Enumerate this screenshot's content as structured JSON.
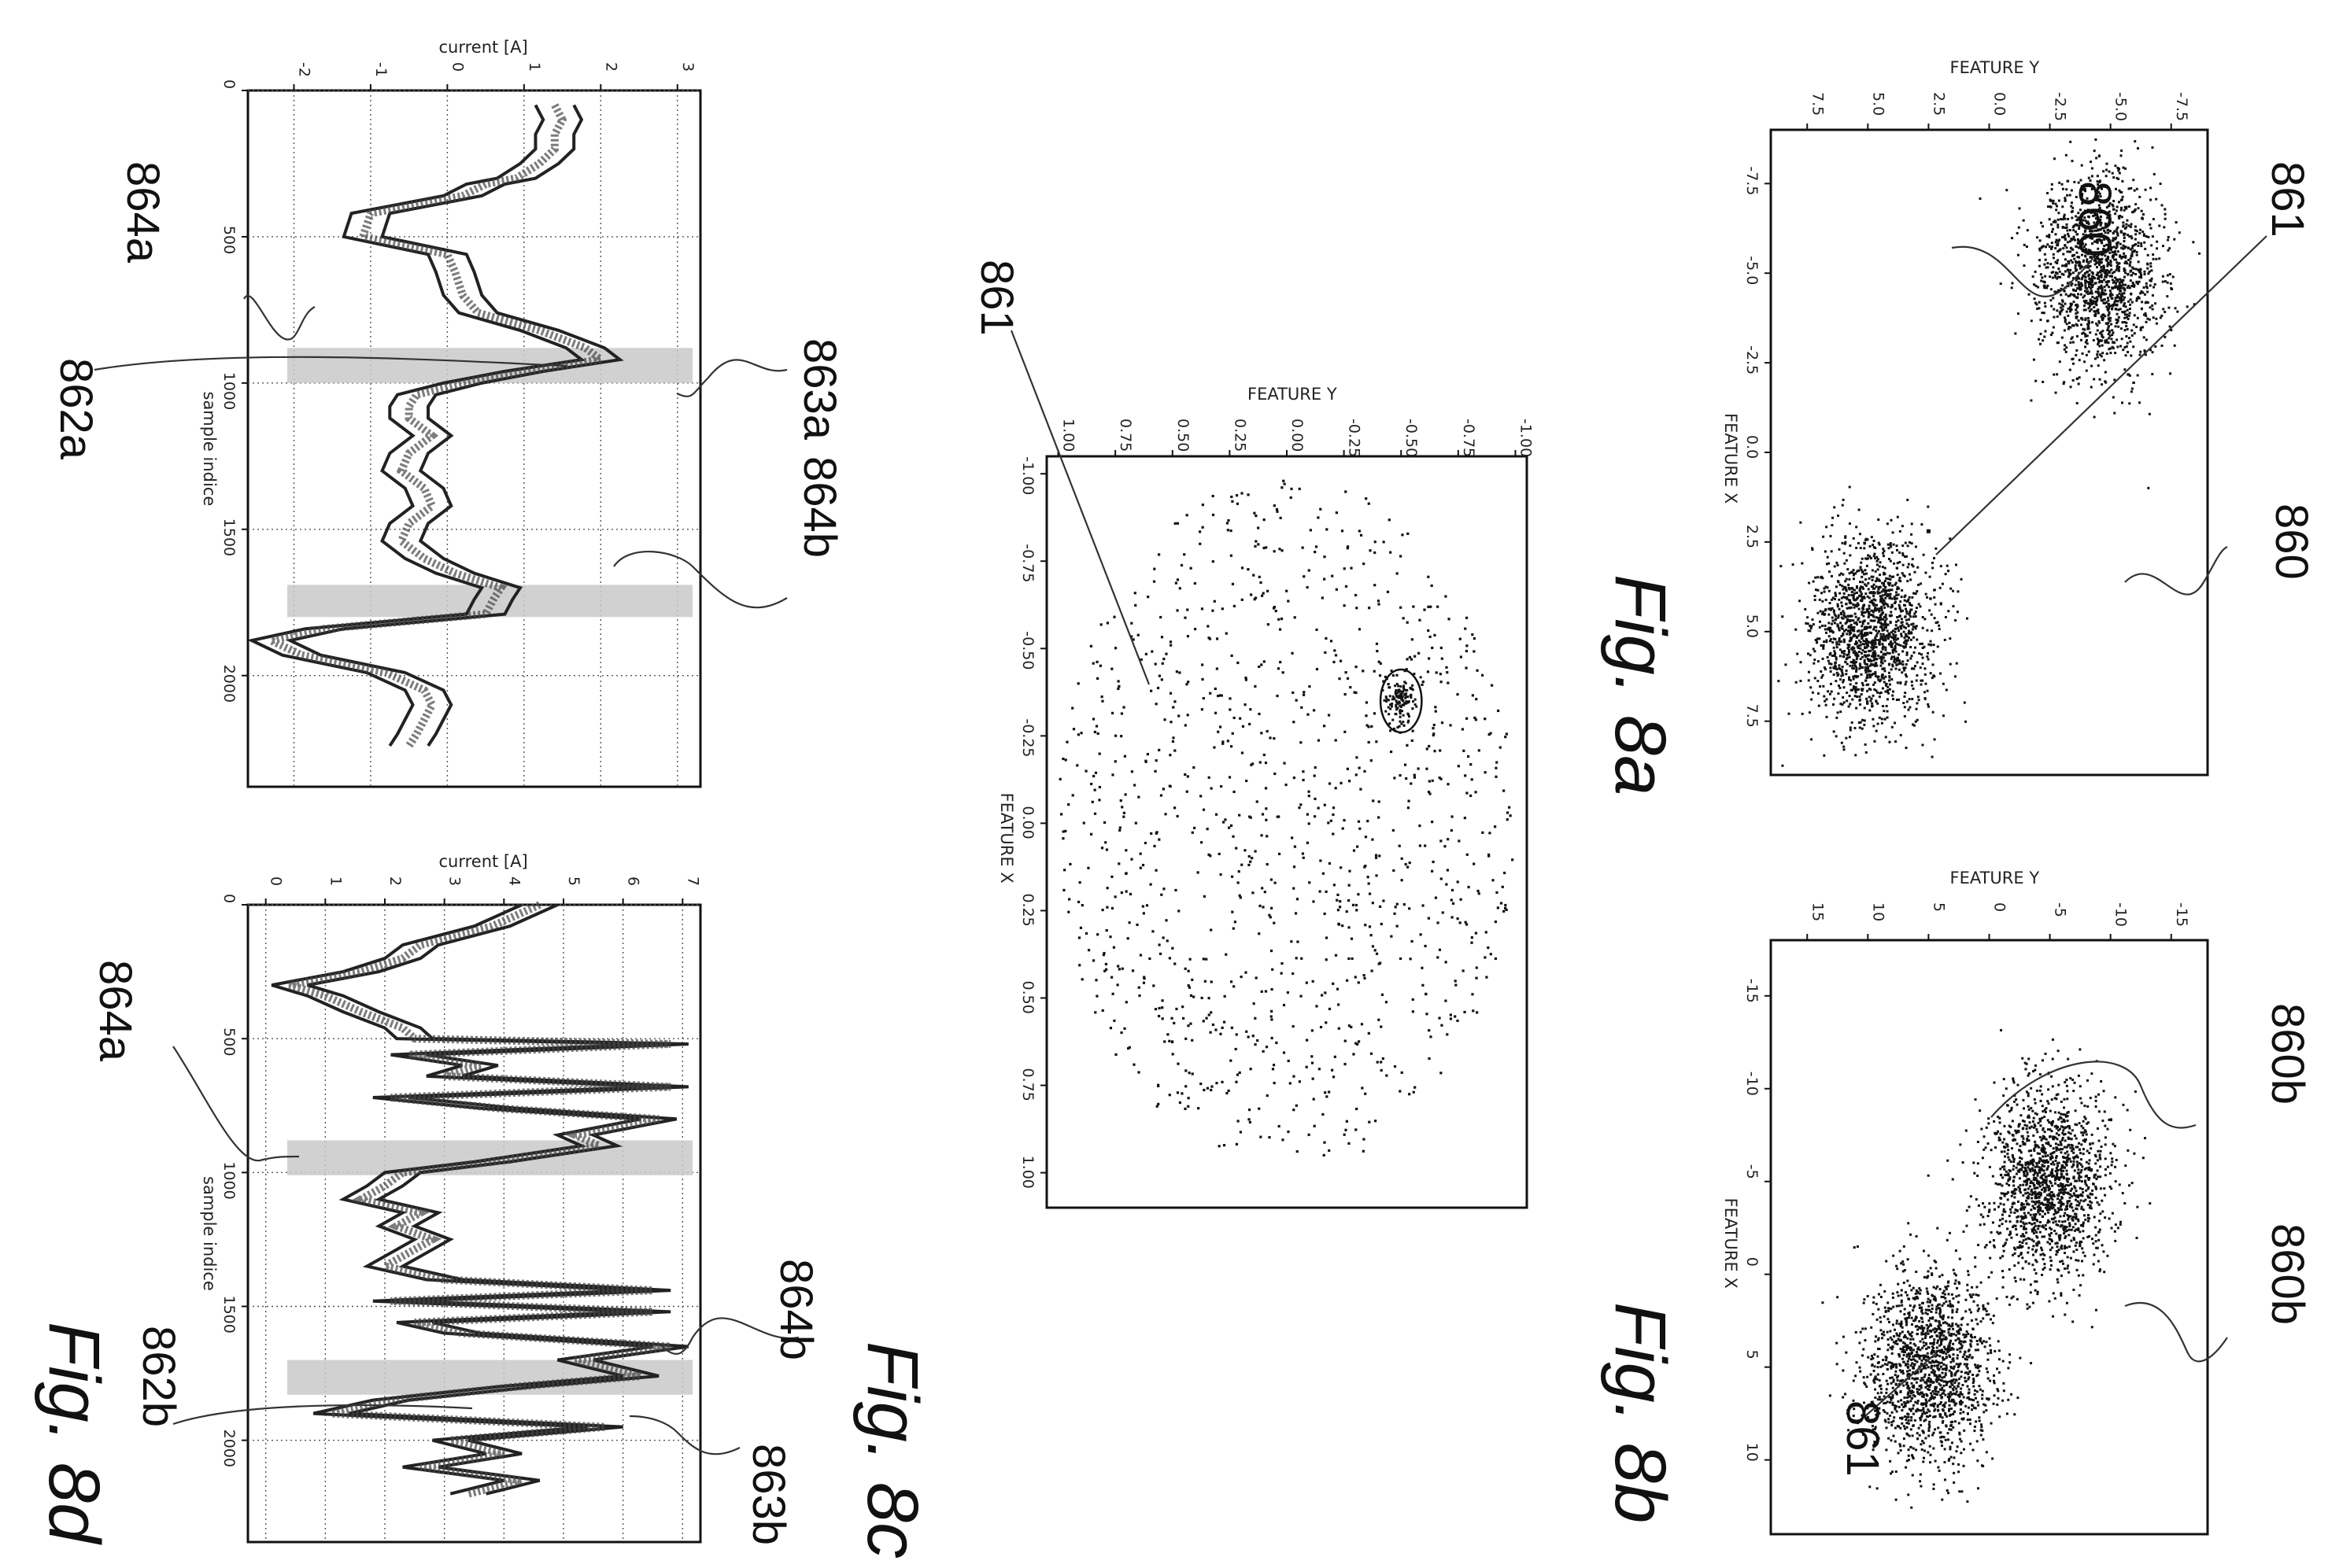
{
  "figures": {
    "fig8a": "Fig. 8a",
    "fig8b": "Fig. 8b",
    "fig8c": "Fig. 8c",
    "fig8d": "Fig. 8d"
  },
  "callouts": {
    "c860_a1": "860",
    "c860_a2": "860",
    "c861_a": "861",
    "c860b_1": "860b",
    "c860b_2": "860b",
    "c861_b": "861",
    "c861_mid": "861",
    "c864a_c": "864a",
    "c862a": "862a",
    "c863a": "863a",
    "c864b_c": "864b",
    "c864a_d": "864a",
    "c864b_d": "864b",
    "c862b": "862b",
    "c863b": "863b"
  },
  "chart_data": [
    {
      "id": "fig8a",
      "type": "scatter",
      "xlabel": "FEATURE X",
      "ylabel": "FEATURE Y",
      "x_ticks": [
        "-7.5",
        "-5.0",
        "-2.5",
        "0.0",
        "2.5",
        "5.0",
        "7.5"
      ],
      "y_ticks": [
        "-7.5",
        "-5.0",
        "-2.5",
        "0.0",
        "2.5",
        "5.0",
        "7.5"
      ],
      "xlim": [
        -9,
        9
      ],
      "ylim": [
        -9,
        9
      ],
      "clusters": [
        {
          "center": [
            -5,
            -4.5
          ],
          "spread": 1.3,
          "count": 1500
        },
        {
          "center": [
            5,
            4.8
          ],
          "spread": 1.3,
          "count": 1500
        }
      ],
      "outliers": [
        [
          2.2,
          2.5
        ]
      ],
      "grid": false
    },
    {
      "id": "fig8b",
      "type": "scatter",
      "xlabel": "FEATURE X",
      "ylabel": "FEATURE Y",
      "x_ticks": [
        "-15",
        "-10",
        "-5",
        "0",
        "5",
        "10"
      ],
      "y_ticks": [
        "-15",
        "-10",
        "-5",
        "0",
        "5",
        "10",
        "15"
      ],
      "xlim": [
        -18,
        14
      ],
      "ylim": [
        -18,
        18
      ],
      "clusters": [
        {
          "center": [
            -5,
            -5
          ],
          "spread": 2.6,
          "count": 1500
        },
        {
          "center": [
            5,
            5
          ],
          "spread": 2.6,
          "count": 1500
        }
      ],
      "outliers": [],
      "grid": false
    },
    {
      "id": "fig8mid",
      "type": "scatter",
      "xlabel": "FEATURE X",
      "ylabel": "FEATURE Y",
      "x_ticks": [
        "-1.00",
        "-0.75",
        "-0.50",
        "-0.25",
        "0.00",
        "0.25",
        "0.50",
        "0.75",
        "1.00"
      ],
      "y_ticks": [
        "-1.00",
        "-0.75",
        "-0.50",
        "-0.25",
        "0.00",
        "0.25",
        "0.50",
        "0.75",
        "1.00"
      ],
      "xlim": [
        -1.05,
        1.1
      ],
      "ylim": [
        -1.05,
        1.05
      ],
      "uniform_disc": {
        "radius": 1.0,
        "count": 1100
      },
      "clusters": [
        {
          "center": [
            -0.35,
            -0.5
          ],
          "spread": 0.035,
          "count": 120
        }
      ],
      "circle_marker": {
        "center": [
          -0.35,
          -0.5
        ],
        "radius": 0.09
      },
      "grid": false
    },
    {
      "id": "fig8c",
      "type": "line",
      "xlabel": "sample indice",
      "ylabel": "current [A]",
      "x_ticks": [
        0,
        500,
        1000,
        1500,
        2000
      ],
      "y_ticks": [
        -2,
        -1,
        0,
        1,
        2,
        3
      ],
      "xlim": [
        0,
        2380
      ],
      "ylim": [
        -2.6,
        3.3
      ],
      "grid": true,
      "highlight_bands": [
        [
          880,
          1000
        ],
        [
          1690,
          1800
        ]
      ],
      "series": [
        {
          "x": [
            50,
            100,
            150,
            200,
            250,
            300,
            320,
            360,
            420,
            500,
            560,
            620,
            700,
            760,
            820,
            880,
            920,
            960,
            1000,
            1040,
            1080,
            1120,
            1180,
            1240,
            1300,
            1360,
            1420,
            1480,
            1540,
            1600,
            1650,
            1700,
            1740,
            1790,
            1840,
            1880,
            1930,
            1990,
            2050,
            2100,
            2150,
            2200,
            2240
          ],
          "y": [
            1.4,
            1.5,
            1.4,
            1.4,
            1.2,
            0.9,
            0.5,
            0.2,
            -1.0,
            -1.1,
            0.0,
            0.1,
            0.2,
            0.4,
            1.2,
            1.8,
            2.0,
            1.0,
            0.2,
            -0.4,
            -0.5,
            -0.5,
            -0.2,
            -0.5,
            -0.6,
            -0.3,
            -0.2,
            -0.5,
            -0.6,
            -0.3,
            0.1,
            0.7,
            0.6,
            0.5,
            -1.6,
            -2.3,
            -1.9,
            -0.8,
            -0.3,
            -0.2,
            -0.3,
            -0.4,
            -0.5
          ],
          "band": 0.25
        }
      ]
    },
    {
      "id": "fig8d",
      "type": "line",
      "xlabel": "sample indice",
      "ylabel": "current [A]",
      "x_ticks": [
        0,
        500,
        1000,
        1500,
        2000
      ],
      "y_ticks": [
        0,
        1,
        2,
        3,
        4,
        5,
        6,
        7
      ],
      "xlim": [
        0,
        2380
      ],
      "ylim": [
        -0.3,
        7.3
      ],
      "grid": true,
      "highlight_bands": [
        [
          880,
          1010
        ],
        [
          1700,
          1830
        ]
      ],
      "series": [
        {
          "x": [
            0,
            80,
            150,
            200,
            250,
            300,
            340,
            400,
            460,
            500,
            520,
            560,
            600,
            640,
            680,
            720,
            760,
            800,
            860,
            900,
            960,
            1000,
            1050,
            1100,
            1150,
            1200,
            1250,
            1300,
            1350,
            1400,
            1440,
            1480,
            1520,
            1560,
            1600,
            1650,
            1700,
            1760,
            1800,
            1850,
            1900,
            1950,
            2000,
            2050,
            2100,
            2150,
            2200
          ],
          "y": [
            4.6,
            3.8,
            2.6,
            2.3,
            1.6,
            0.4,
            1.0,
            1.6,
            2.3,
            2.5,
            6.8,
            2.4,
            3.6,
            3.0,
            6.8,
            2.1,
            3.9,
            6.6,
            5.2,
            5.6,
            3.8,
            2.3,
            2.0,
            1.6,
            2.6,
            2.2,
            2.8,
            2.4,
            2.0,
            3.0,
            6.5,
            2.1,
            6.5,
            2.5,
            3.3,
            6.8,
            5.2,
            6.3,
            4.2,
            2.1,
            1.1,
            5.7,
            3.1,
            4.0,
            2.6,
            4.3,
            3.4
          ],
          "band": 0.3
        }
      ]
    }
  ]
}
